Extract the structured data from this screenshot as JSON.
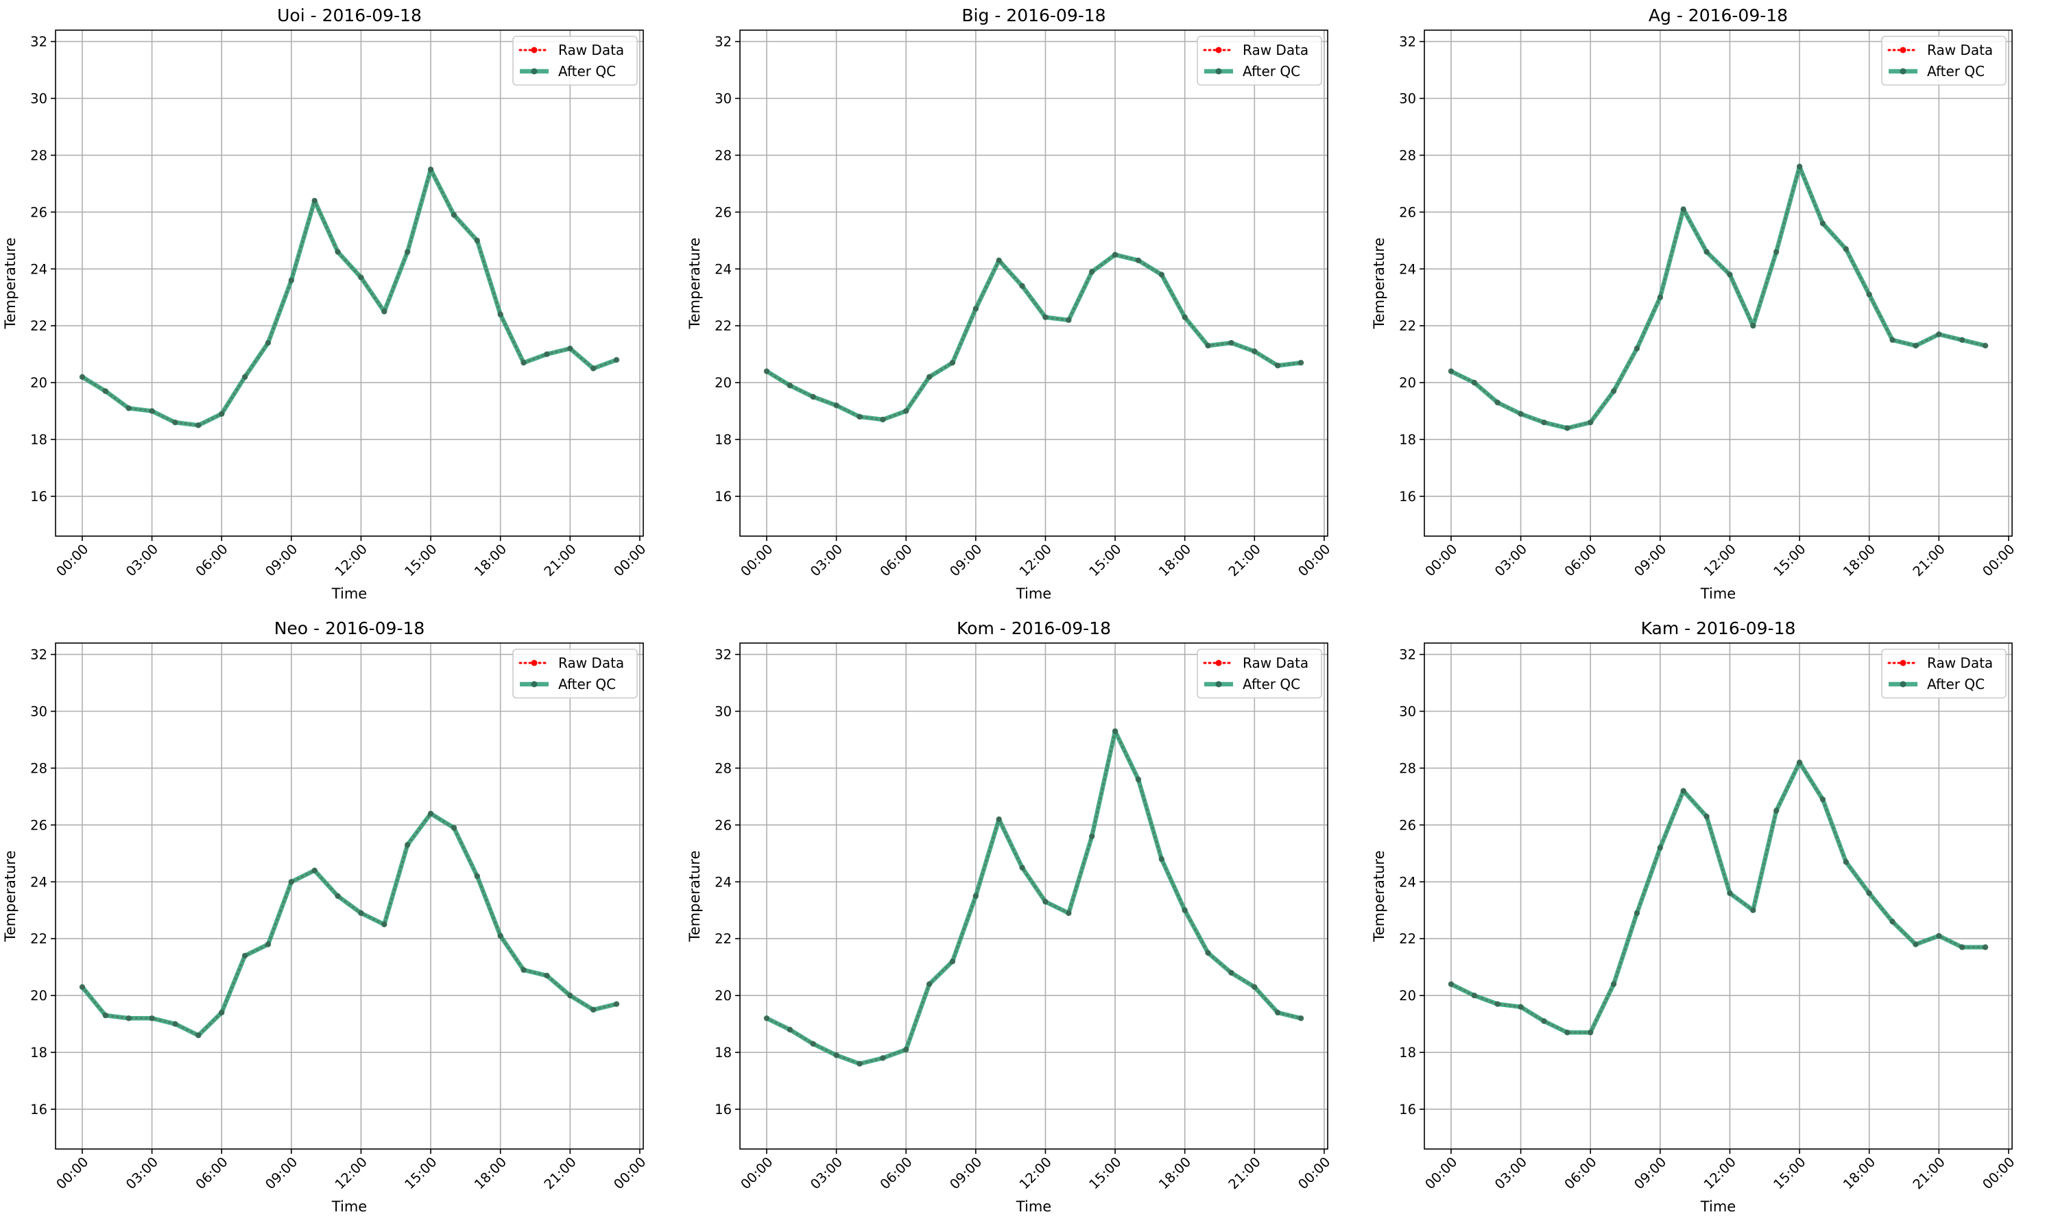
{
  "colors": {
    "raw": "#ff0000",
    "qc": "#2a9d75",
    "grid": "#b0b0b0",
    "axes": "#000000",
    "legend_border": "#cccccc"
  },
  "chart_data": [
    {
      "type": "line",
      "title": "Uoi - 2016-09-18",
      "xlabel": "Time",
      "ylabel": "Temperature",
      "ylim": [
        14.6,
        32.4
      ],
      "yticks": [
        16,
        18,
        20,
        22,
        24,
        26,
        28,
        30,
        32
      ],
      "xticks": [
        "00:00",
        "03:00",
        "06:00",
        "09:00",
        "12:00",
        "15:00",
        "18:00",
        "21:00",
        "00:00"
      ],
      "grid": true,
      "legend_position": "upper right",
      "x": [
        "00:00",
        "01:00",
        "02:00",
        "03:00",
        "04:00",
        "05:00",
        "06:00",
        "07:00",
        "08:00",
        "09:00",
        "10:00",
        "11:00",
        "12:00",
        "13:00",
        "14:00",
        "15:00",
        "16:00",
        "17:00",
        "18:00",
        "19:00",
        "20:00",
        "21:00",
        "22:00",
        "23:00"
      ],
      "series": [
        {
          "name": "Raw Data",
          "values": [
            20.2,
            19.7,
            19.1,
            19.0,
            18.6,
            18.5,
            18.9,
            20.2,
            21.4,
            23.6,
            26.4,
            24.6,
            23.7,
            22.5,
            24.6,
            27.5,
            25.9,
            25.0,
            22.4,
            20.7,
            21.0,
            21.2,
            20.5,
            20.8
          ]
        },
        {
          "name": "After QC",
          "values": [
            20.2,
            19.7,
            19.1,
            19.0,
            18.6,
            18.5,
            18.9,
            20.2,
            21.4,
            23.6,
            26.4,
            24.6,
            23.7,
            22.5,
            24.6,
            27.5,
            25.9,
            25.0,
            22.4,
            20.7,
            21.0,
            21.2,
            20.5,
            20.8
          ]
        }
      ]
    },
    {
      "type": "line",
      "title": "Big - 2016-09-18",
      "xlabel": "Time",
      "ylabel": "Temperature",
      "ylim": [
        14.6,
        32.4
      ],
      "yticks": [
        16,
        18,
        20,
        22,
        24,
        26,
        28,
        30,
        32
      ],
      "xticks": [
        "00:00",
        "03:00",
        "06:00",
        "09:00",
        "12:00",
        "15:00",
        "18:00",
        "21:00",
        "00:00"
      ],
      "grid": true,
      "legend_position": "upper right",
      "x": [
        "00:00",
        "01:00",
        "02:00",
        "03:00",
        "04:00",
        "05:00",
        "06:00",
        "07:00",
        "08:00",
        "09:00",
        "10:00",
        "11:00",
        "12:00",
        "13:00",
        "14:00",
        "15:00",
        "16:00",
        "17:00",
        "18:00",
        "19:00",
        "20:00",
        "21:00",
        "22:00",
        "23:00"
      ],
      "series": [
        {
          "name": "Raw Data",
          "values": [
            20.4,
            19.9,
            19.5,
            19.2,
            18.8,
            18.7,
            19.0,
            20.2,
            20.7,
            22.6,
            24.3,
            23.4,
            22.3,
            22.2,
            23.9,
            24.5,
            24.3,
            23.8,
            22.3,
            21.3,
            21.4,
            21.1,
            20.6,
            20.7
          ]
        },
        {
          "name": "After QC",
          "values": [
            20.4,
            19.9,
            19.5,
            19.2,
            18.8,
            18.7,
            19.0,
            20.2,
            20.7,
            22.6,
            24.3,
            23.4,
            22.3,
            22.2,
            23.9,
            24.5,
            24.3,
            23.8,
            22.3,
            21.3,
            21.4,
            21.1,
            20.6,
            20.7
          ]
        }
      ]
    },
    {
      "type": "line",
      "title": "Ag - 2016-09-18",
      "xlabel": "Time",
      "ylabel": "Temperature",
      "ylim": [
        14.6,
        32.4
      ],
      "yticks": [
        16,
        18,
        20,
        22,
        24,
        26,
        28,
        30,
        32
      ],
      "xticks": [
        "00:00",
        "03:00",
        "06:00",
        "09:00",
        "12:00",
        "15:00",
        "18:00",
        "21:00",
        "00:00"
      ],
      "grid": true,
      "legend_position": "upper right",
      "x": [
        "00:00",
        "01:00",
        "02:00",
        "03:00",
        "04:00",
        "05:00",
        "06:00",
        "07:00",
        "08:00",
        "09:00",
        "10:00",
        "11:00",
        "12:00",
        "13:00",
        "14:00",
        "15:00",
        "16:00",
        "17:00",
        "18:00",
        "19:00",
        "20:00",
        "21:00",
        "22:00",
        "23:00"
      ],
      "series": [
        {
          "name": "Raw Data",
          "values": [
            20.4,
            20.0,
            19.3,
            18.9,
            18.6,
            18.4,
            18.6,
            19.7,
            21.2,
            23.0,
            26.1,
            24.6,
            23.8,
            22.0,
            24.6,
            27.6,
            25.6,
            24.7,
            23.1,
            21.5,
            21.3,
            21.7,
            21.5,
            21.3
          ]
        },
        {
          "name": "After QC",
          "values": [
            20.4,
            20.0,
            19.3,
            18.9,
            18.6,
            18.4,
            18.6,
            19.7,
            21.2,
            23.0,
            26.1,
            24.6,
            23.8,
            22.0,
            24.6,
            27.6,
            25.6,
            24.7,
            23.1,
            21.5,
            21.3,
            21.7,
            21.5,
            21.3
          ]
        }
      ]
    },
    {
      "type": "line",
      "title": "Neo - 2016-09-18",
      "xlabel": "Time",
      "ylabel": "Temperature",
      "ylim": [
        14.6,
        32.4
      ],
      "yticks": [
        16,
        18,
        20,
        22,
        24,
        26,
        28,
        30,
        32
      ],
      "xticks": [
        "00:00",
        "03:00",
        "06:00",
        "09:00",
        "12:00",
        "15:00",
        "18:00",
        "21:00",
        "00:00"
      ],
      "grid": true,
      "legend_position": "upper right",
      "x": [
        "00:00",
        "01:00",
        "02:00",
        "03:00",
        "04:00",
        "05:00",
        "06:00",
        "07:00",
        "08:00",
        "09:00",
        "10:00",
        "11:00",
        "12:00",
        "13:00",
        "14:00",
        "15:00",
        "16:00",
        "17:00",
        "18:00",
        "19:00",
        "20:00",
        "21:00",
        "22:00",
        "23:00"
      ],
      "series": [
        {
          "name": "Raw Data",
          "values": [
            20.3,
            19.3,
            19.2,
            19.2,
            19.0,
            18.6,
            19.4,
            21.4,
            21.8,
            24.0,
            24.4,
            23.5,
            22.9,
            22.5,
            25.3,
            26.4,
            25.9,
            24.2,
            22.1,
            20.9,
            20.7,
            20.0,
            19.5,
            19.7
          ]
        },
        {
          "name": "After QC",
          "values": [
            20.3,
            19.3,
            19.2,
            19.2,
            19.0,
            18.6,
            19.4,
            21.4,
            21.8,
            24.0,
            24.4,
            23.5,
            22.9,
            22.5,
            25.3,
            26.4,
            25.9,
            24.2,
            22.1,
            20.9,
            20.7,
            20.0,
            19.5,
            19.7
          ]
        }
      ]
    },
    {
      "type": "line",
      "title": "Kom - 2016-09-18",
      "xlabel": "Time",
      "ylabel": "Temperature",
      "ylim": [
        14.6,
        32.4
      ],
      "yticks": [
        16,
        18,
        20,
        22,
        24,
        26,
        28,
        30,
        32
      ],
      "xticks": [
        "00:00",
        "03:00",
        "06:00",
        "09:00",
        "12:00",
        "15:00",
        "18:00",
        "21:00",
        "00:00"
      ],
      "grid": true,
      "legend_position": "upper right",
      "x": [
        "00:00",
        "01:00",
        "02:00",
        "03:00",
        "04:00",
        "05:00",
        "06:00",
        "07:00",
        "08:00",
        "09:00",
        "10:00",
        "11:00",
        "12:00",
        "13:00",
        "14:00",
        "15:00",
        "16:00",
        "17:00",
        "18:00",
        "19:00",
        "20:00",
        "21:00",
        "22:00",
        "23:00"
      ],
      "series": [
        {
          "name": "Raw Data",
          "values": [
            19.2,
            18.8,
            18.3,
            17.9,
            17.6,
            17.8,
            18.1,
            20.4,
            21.2,
            23.5,
            26.2,
            24.5,
            23.3,
            22.9,
            25.6,
            29.3,
            27.6,
            24.8,
            23.0,
            21.5,
            20.8,
            20.3,
            19.4,
            19.2
          ]
        },
        {
          "name": "After QC",
          "values": [
            19.2,
            18.8,
            18.3,
            17.9,
            17.6,
            17.8,
            18.1,
            20.4,
            21.2,
            23.5,
            26.2,
            24.5,
            23.3,
            22.9,
            25.6,
            29.3,
            27.6,
            24.8,
            23.0,
            21.5,
            20.8,
            20.3,
            19.4,
            19.2
          ]
        }
      ]
    },
    {
      "type": "line",
      "title": "Kam - 2016-09-18",
      "xlabel": "Time",
      "ylabel": "Temperature",
      "ylim": [
        14.6,
        32.4
      ],
      "yticks": [
        16,
        18,
        20,
        22,
        24,
        26,
        28,
        30,
        32
      ],
      "xticks": [
        "00:00",
        "03:00",
        "06:00",
        "09:00",
        "12:00",
        "15:00",
        "18:00",
        "21:00",
        "00:00"
      ],
      "grid": true,
      "legend_position": "upper right",
      "x": [
        "00:00",
        "01:00",
        "02:00",
        "03:00",
        "04:00",
        "05:00",
        "06:00",
        "07:00",
        "08:00",
        "09:00",
        "10:00",
        "11:00",
        "12:00",
        "13:00",
        "14:00",
        "15:00",
        "16:00",
        "17:00",
        "18:00",
        "19:00",
        "20:00",
        "21:00",
        "22:00",
        "23:00"
      ],
      "series": [
        {
          "name": "Raw Data",
          "values": [
            20.4,
            20.0,
            19.7,
            19.6,
            19.1,
            18.7,
            18.7,
            20.4,
            22.9,
            25.2,
            27.2,
            26.3,
            23.6,
            23.0,
            26.5,
            28.2,
            26.9,
            24.7,
            23.6,
            22.6,
            21.8,
            22.1,
            21.7,
            21.7
          ]
        },
        {
          "name": "After QC",
          "values": [
            20.4,
            20.0,
            19.7,
            19.6,
            19.1,
            18.7,
            18.7,
            20.4,
            22.9,
            25.2,
            27.2,
            26.3,
            23.6,
            23.0,
            26.5,
            28.2,
            26.9,
            24.7,
            23.6,
            22.6,
            21.8,
            22.1,
            21.7,
            21.7
          ]
        }
      ]
    }
  ]
}
